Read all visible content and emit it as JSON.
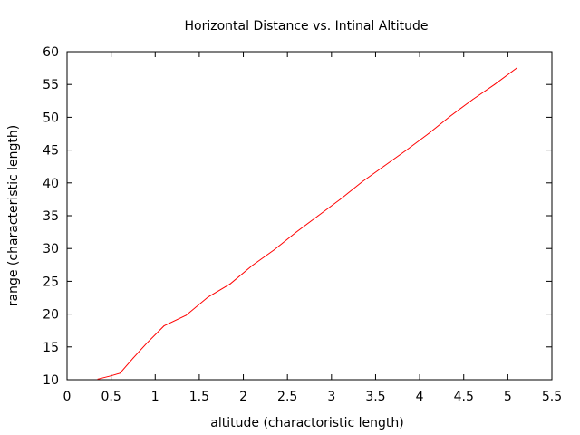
{
  "chart_data": {
    "type": "line",
    "title": "Horizontal Distance vs. Intinal Altitude",
    "xlabel": "altitude (charactoristic length)",
    "ylabel": "range (characteristic length)",
    "xlim": [
      0,
      5.5
    ],
    "ylim": [
      10,
      60
    ],
    "xticks": [
      "0",
      "0.5",
      "1",
      "1.5",
      "2",
      "2.5",
      "3",
      "3.5",
      "4",
      "4.5",
      "5",
      "5.5"
    ],
    "yticks": [
      "10",
      "15",
      "20",
      "25",
      "30",
      "35",
      "40",
      "45",
      "50",
      "55",
      "60"
    ],
    "grid": false,
    "series": [
      {
        "color": "#ff0000",
        "x": [
          0.35,
          0.5,
          0.6,
          0.75,
          0.9,
          1.1,
          1.35,
          1.6,
          1.85,
          2.1,
          2.35,
          2.6,
          2.85,
          3.1,
          3.35,
          3.6,
          3.85,
          4.1,
          4.35,
          4.6,
          4.85,
          5.1
        ],
        "y": [
          10.1,
          10.6,
          11.0,
          13.3,
          15.5,
          18.2,
          19.8,
          22.6,
          24.6,
          27.4,
          29.8,
          32.5,
          35.0,
          37.5,
          40.2,
          42.6,
          45.0,
          47.5,
          50.2,
          52.7,
          55.0,
          57.5
        ]
      }
    ]
  }
}
